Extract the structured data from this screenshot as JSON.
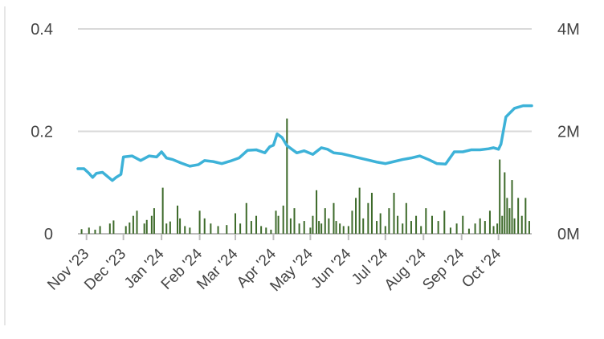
{
  "chart_data": {
    "type": "line+bar",
    "colors": {
      "price_line": "#3db2d8",
      "volume_bars": "#3d6a2a",
      "grid": "#d9d9d9",
      "axis": "#bdbdbd"
    },
    "y_left": {
      "ylim": [
        0,
        0.4
      ],
      "ticks": [
        0,
        0.2,
        0.4
      ],
      "tick_labels": [
        "0",
        "0.2",
        "0.4"
      ]
    },
    "y_right": {
      "ylim": [
        0,
        4000000
      ],
      "ticks": [
        0,
        2000000,
        4000000
      ],
      "tick_labels": [
        "0M",
        "2M",
        "4M"
      ]
    },
    "x_range": [
      "2023-10-25",
      "2024-10-28"
    ],
    "x_ticks": [
      {
        "date": "2023-11-01",
        "label": "Nov '23"
      },
      {
        "date": "2023-12-01",
        "label": "Dec '23"
      },
      {
        "date": "2024-01-01",
        "label": "Jan '24"
      },
      {
        "date": "2024-02-01",
        "label": "Feb '24"
      },
      {
        "date": "2024-03-01",
        "label": "Mar '24"
      },
      {
        "date": "2024-04-01",
        "label": "Apr '24"
      },
      {
        "date": "2024-05-01",
        "label": "May '24"
      },
      {
        "date": "2024-06-01",
        "label": "Jun '24"
      },
      {
        "date": "2024-07-01",
        "label": "Jul '24"
      },
      {
        "date": "2024-08-01",
        "label": "Aug '24"
      },
      {
        "date": "2024-09-01",
        "label": "Sep '24"
      },
      {
        "date": "2024-10-01",
        "label": "Oct '24"
      }
    ],
    "series": [
      {
        "type": "line",
        "x": [
          "2023-10-25",
          "2023-10-30",
          "2023-11-03",
          "2023-11-06",
          "2023-11-09",
          "2023-11-14",
          "2023-11-18",
          "2023-11-22",
          "2023-11-25",
          "2023-11-29",
          "2023-12-01",
          "2023-12-08",
          "2023-12-15",
          "2023-12-22",
          "2023-12-28",
          "2024-01-01",
          "2024-01-05",
          "2024-01-10",
          "2024-01-17",
          "2024-01-24",
          "2024-01-31",
          "2024-02-05",
          "2024-02-12",
          "2024-02-19",
          "2024-02-26",
          "2024-03-04",
          "2024-03-11",
          "2024-03-18",
          "2024-03-25",
          "2024-03-29",
          "2024-04-01",
          "2024-04-04",
          "2024-04-08",
          "2024-04-12",
          "2024-04-16",
          "2024-04-20",
          "2024-04-26",
          "2024-05-03",
          "2024-05-10",
          "2024-05-15",
          "2024-05-20",
          "2024-05-27",
          "2024-06-03",
          "2024-06-10",
          "2024-06-17",
          "2024-06-24",
          "2024-07-01",
          "2024-07-08",
          "2024-07-15",
          "2024-07-22",
          "2024-07-29",
          "2024-08-05",
          "2024-08-12",
          "2024-08-19",
          "2024-08-26",
          "2024-09-02",
          "2024-09-09",
          "2024-09-16",
          "2024-09-23",
          "2024-09-27",
          "2024-10-01",
          "2024-10-03",
          "2024-10-07",
          "2024-10-14",
          "2024-10-21",
          "2024-10-28"
        ],
        "y": [
          0.127,
          0.127,
          0.118,
          0.11,
          0.118,
          0.12,
          0.112,
          0.104,
          0.11,
          0.116,
          0.15,
          0.152,
          0.143,
          0.152,
          0.15,
          0.16,
          0.148,
          0.145,
          0.138,
          0.132,
          0.135,
          0.143,
          0.141,
          0.137,
          0.142,
          0.148,
          0.163,
          0.164,
          0.158,
          0.17,
          0.173,
          0.195,
          0.188,
          0.172,
          0.165,
          0.158,
          0.162,
          0.155,
          0.168,
          0.165,
          0.158,
          0.156,
          0.152,
          0.148,
          0.144,
          0.14,
          0.137,
          0.141,
          0.145,
          0.148,
          0.152,
          0.145,
          0.137,
          0.136,
          0.16,
          0.16,
          0.164,
          0.164,
          0.166,
          0.168,
          0.165,
          0.175,
          0.228,
          0.245,
          0.25,
          0.25
        ]
      },
      {
        "type": "bar",
        "x": [
          "2023-10-28",
          "2023-11-03",
          "2023-11-08",
          "2023-11-12",
          "2023-11-20",
          "2023-11-23",
          "2023-12-03",
          "2023-12-06",
          "2023-12-09",
          "2023-12-12",
          "2023-12-18",
          "2023-12-20",
          "2023-12-24",
          "2023-12-26",
          "2024-01-02",
          "2024-01-05",
          "2024-01-08",
          "2024-01-14",
          "2024-01-16",
          "2024-01-20",
          "2024-01-24",
          "2024-02-01",
          "2024-02-05",
          "2024-02-10",
          "2024-02-16",
          "2024-02-23",
          "2024-03-01",
          "2024-03-05",
          "2024-03-10",
          "2024-03-14",
          "2024-03-18",
          "2024-03-22",
          "2024-03-26",
          "2024-03-30",
          "2024-04-03",
          "2024-04-05",
          "2024-04-09",
          "2024-04-12",
          "2024-04-15",
          "2024-04-18",
          "2024-04-22",
          "2024-04-26",
          "2024-05-01",
          "2024-05-03",
          "2024-05-06",
          "2024-05-08",
          "2024-05-10",
          "2024-05-13",
          "2024-05-16",
          "2024-05-20",
          "2024-05-22",
          "2024-05-25",
          "2024-05-28",
          "2024-06-01",
          "2024-06-04",
          "2024-06-07",
          "2024-06-10",
          "2024-06-13",
          "2024-06-17",
          "2024-06-20",
          "2024-06-24",
          "2024-06-27",
          "2024-07-01",
          "2024-07-04",
          "2024-07-08",
          "2024-07-11",
          "2024-07-15",
          "2024-07-18",
          "2024-07-22",
          "2024-07-26",
          "2024-07-30",
          "2024-08-03",
          "2024-08-08",
          "2024-08-13",
          "2024-08-18",
          "2024-08-23",
          "2024-08-28",
          "2024-09-02",
          "2024-09-07",
          "2024-09-12",
          "2024-09-16",
          "2024-09-20",
          "2024-09-24",
          "2024-09-27",
          "2024-09-30",
          "2024-10-02",
          "2024-10-04",
          "2024-10-06",
          "2024-10-08",
          "2024-10-10",
          "2024-10-12",
          "2024-10-14",
          "2024-10-17",
          "2024-10-20",
          "2024-10-23",
          "2024-10-26"
        ],
        "y": [
          90000,
          120000,
          80000,
          150000,
          200000,
          260000,
          150000,
          220000,
          350000,
          450000,
          200000,
          270000,
          350000,
          500000,
          900000,
          200000,
          240000,
          550000,
          300000,
          150000,
          120000,
          450000,
          300000,
          200000,
          150000,
          170000,
          400000,
          200000,
          600000,
          250000,
          350000,
          150000,
          120000,
          80000,
          450000,
          350000,
          550000,
          2250000,
          300000,
          500000,
          200000,
          250000,
          120000,
          350000,
          850000,
          250000,
          200000,
          500000,
          300000,
          600000,
          250000,
          200000,
          150000,
          150000,
          450000,
          700000,
          900000,
          300000,
          600000,
          800000,
          250000,
          400000,
          150000,
          500000,
          800000,
          350000,
          200000,
          600000,
          250000,
          350000,
          150000,
          500000,
          350000,
          250000,
          450000,
          120000,
          200000,
          350000,
          100000,
          200000,
          300000,
          250000,
          450000,
          150000,
          200000,
          1450000,
          350000,
          1200000,
          700000,
          500000,
          1050000,
          300000,
          700000,
          350000,
          700000,
          250000
        ]
      }
    ]
  }
}
